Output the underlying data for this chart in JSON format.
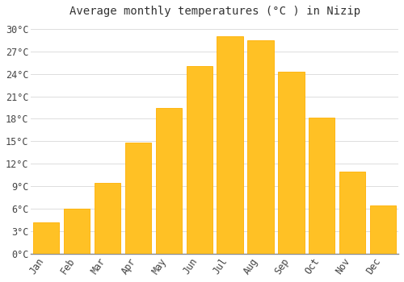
{
  "title": "Average monthly temperatures (°C ) in Nizip",
  "months": [
    "Jan",
    "Feb",
    "Mar",
    "Apr",
    "May",
    "Jun",
    "Jul",
    "Aug",
    "Sep",
    "Oct",
    "Nov",
    "Dec"
  ],
  "temperatures": [
    4.2,
    6.0,
    9.5,
    14.8,
    19.5,
    25.0,
    29.0,
    28.5,
    24.3,
    18.2,
    11.0,
    6.5
  ],
  "bar_color_face": "#FFC125",
  "bar_color_edge": "#FFB000",
  "background_color": "#FFFFFF",
  "grid_color": "#DDDDDD",
  "ylim": [
    0,
    31
  ],
  "yticks": [
    0,
    3,
    6,
    9,
    12,
    15,
    18,
    21,
    24,
    27,
    30
  ],
  "title_fontsize": 10,
  "tick_fontsize": 8.5,
  "bar_width": 0.85
}
